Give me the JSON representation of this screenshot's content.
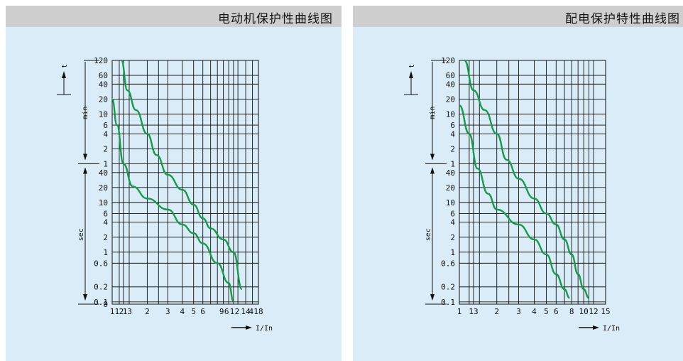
{
  "chart_data": [
    {
      "type": "line",
      "title": "电动机保护性曲线图",
      "xlabel": "I/In",
      "ylabel": "t",
      "y_units": {
        "upper": "min",
        "lower": "sec"
      },
      "x_ticks": [
        "1",
        "1.2",
        "1.3",
        "2",
        "3",
        "4",
        "5",
        "6",
        "9",
        "6",
        "1",
        "2",
        "14",
        "4",
        "18"
      ],
      "x_tick_labels_text": "1 1 2 1 3   2    3    4  5  6   9 6 1 2  1 4 4 1 8",
      "y_ticks_min": [
        "120",
        "60",
        "40",
        "20",
        "10",
        "6",
        "4",
        "2",
        "1"
      ],
      "y_ticks_sec": [
        "40",
        "20",
        "10",
        "6",
        "4",
        "2",
        "1",
        "0.6",
        "0.2",
        "0.1",
        "0"
      ],
      "series": [
        {
          "values_note": "upper curve",
          "x": [
            1.2,
            1.35,
            1.6,
            2.0,
            2.4,
            3.0,
            4.0,
            5.0,
            6.0,
            7.0,
            9.0,
            11.0,
            13.0
          ],
          "y_min_scale": [
            120,
            30,
            12,
            4,
            1.5,
            0.6,
            0.3,
            0.15,
            0.08,
            0.05,
            0.03,
            0.0167,
            0.003
          ]
        },
        {
          "values_note": "lower curve",
          "x": [
            1.0,
            1.1,
            1.25,
            1.5,
            2.0,
            3.0,
            4.0,
            5.0,
            6.0,
            8.0,
            10.0,
            11.0
          ],
          "y_min_scale": [
            20,
            6,
            1.0,
            0.35,
            0.2,
            0.12,
            0.06,
            0.04,
            0.025,
            0.01,
            0.004,
            0.0017
          ]
        }
      ]
    },
    {
      "type": "line",
      "title": "配电保护特性曲线图",
      "xlabel": "I/In",
      "ylabel": "t",
      "y_units": {
        "upper": "min",
        "lower": "sec"
      },
      "x_ticks": [
        "1",
        "1.3",
        "2",
        "3",
        "4",
        "5",
        "6",
        "8",
        "10",
        "12",
        "15"
      ],
      "y_ticks_min": [
        "120",
        "60",
        "40",
        "20",
        "10",
        "6",
        "4",
        "2",
        "1"
      ],
      "y_ticks_sec": [
        "40",
        "20",
        "10",
        "6",
        "4",
        "2",
        "1",
        "0.6",
        "0.2",
        "0.1"
      ],
      "series": [
        {
          "values_note": "upper curve",
          "x": [
            1.1,
            1.3,
            1.6,
            2.0,
            2.4,
            3.0,
            4.0,
            5.0,
            6.0,
            7.0,
            8.0,
            9.0,
            10.0,
            11.0
          ],
          "y_min_scale": [
            120,
            30,
            12,
            4,
            1.2,
            0.5,
            0.2,
            0.1,
            0.06,
            0.03,
            0.015,
            0.006,
            0.003,
            0.002
          ]
        },
        {
          "values_note": "lower curve",
          "x": [
            1.0,
            1.2,
            1.4,
            1.7,
            2.0,
            3.0,
            4.0,
            5.0,
            6.0,
            7.0,
            7.7
          ],
          "y_min_scale": [
            15,
            4,
            0.8,
            0.25,
            0.12,
            0.06,
            0.03,
            0.015,
            0.006,
            0.003,
            0.002
          ]
        }
      ]
    }
  ],
  "panels": [
    {
      "title": "电动机保护性曲线图",
      "t_label": "t",
      "min_label": "min",
      "sec_label": "sec",
      "i_label": "I/In"
    },
    {
      "title": "配电保护特性曲线图",
      "t_label": "t",
      "min_label": "min",
      "sec_label": "sec",
      "i_label": "I/In"
    }
  ],
  "colors": {
    "curve": "#179a4b",
    "grid": "#111111",
    "panel": "#d9ecf7",
    "header": "#cfcfcf"
  }
}
